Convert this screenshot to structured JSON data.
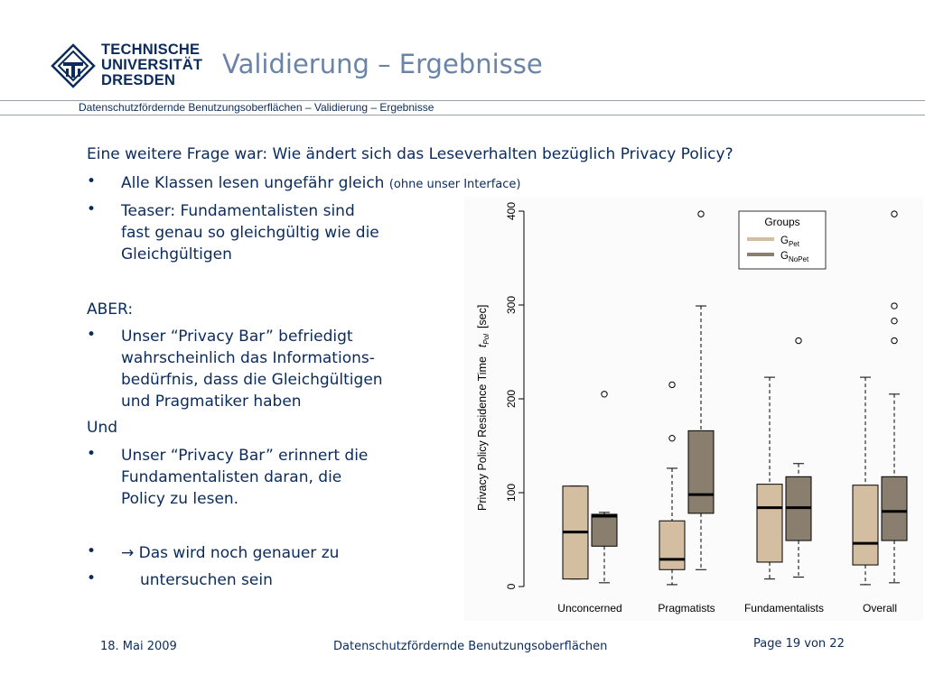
{
  "header": {
    "logo_lines": [
      "TECHNISCHE",
      "UNIVERSITÄT",
      "DRESDEN"
    ],
    "title": "Validierung – Ergebnisse",
    "breadcrumb": "Datenschutzfördernde Benutzungsoberflächen – Validierung – Ergebnisse"
  },
  "body": {
    "intro": "Eine weitere Frage war: Wie ändert sich das Leseverhalten bezüglich Privacy Policy?",
    "bullet1_main": "Alle Klassen lesen ungefähr gleich",
    "bullet1_small": "(ohne unser Interface)",
    "bullet2_lines": [
      "Teaser: Fundamentalisten sind",
      "fast genau so gleichgültig wie die",
      "Gleichgültigen"
    ],
    "aber": "ABER:",
    "bullet3_lines": [
      "Unser “Privacy Bar” befriedigt",
      "wahrscheinlich das Informations-",
      "bedürfnis, dass die Gleichgültigen",
      "und Pragmatiker haben"
    ],
    "und": "Und",
    "bullet4_lines": [
      "Unser “Privacy Bar” erinnert die",
      "Fundamentalisten daran, die",
      "Policy zu lesen."
    ],
    "bullet5": "→ Das wird noch genauer zu",
    "bullet6": "untersuchen sein",
    "bullet_symbol": "•"
  },
  "footer": {
    "date": "18. Mai 2009",
    "center": "Datenschutzfördernde Benutzungsoberflächen",
    "page": "Page 19 von 22"
  },
  "colors": {
    "brand": "#0b2b5c",
    "title": "#6a83a8",
    "pet": "#d4bea2",
    "nopet": "#8a7e6e"
  },
  "chart_data": {
    "type": "boxplot",
    "ylabel": "Privacy Policy Residence Time",
    "ylabel_symbol": "t",
    "ylabel_sub": "Pol",
    "ylabel_unit": "[sec]",
    "yticks": [
      0,
      100,
      200,
      300,
      400
    ],
    "ylim": [
      0,
      400
    ],
    "categories": [
      "Unconcerned",
      "Pragmatists",
      "Fundamentalists",
      "Overall"
    ],
    "legend": {
      "title": "Groups",
      "position": "top-right",
      "entries": [
        {
          "base": "G",
          "sub": "Pet"
        },
        {
          "base": "G",
          "sub": "NoPet"
        }
      ]
    },
    "series": [
      {
        "key": "pet",
        "boxes": [
          {
            "whisker_low": 8,
            "q1": 8,
            "median": 58,
            "q3": 107,
            "whisker_high": 107,
            "outliers": []
          },
          {
            "whisker_low": 2,
            "q1": 18,
            "median": 29,
            "q3": 70,
            "whisker_high": 126,
            "outliers": [
              158,
              215
            ]
          },
          {
            "whisker_low": 8,
            "q1": 26,
            "median": 84,
            "q3": 109,
            "whisker_high": 223,
            "outliers": []
          },
          {
            "whisker_low": 2,
            "q1": 23,
            "median": 46,
            "q3": 108,
            "whisker_high": 223,
            "outliers": []
          }
        ]
      },
      {
        "key": "nopet",
        "boxes": [
          {
            "whisker_low": 4,
            "q1": 43,
            "median": 75,
            "q3": 77,
            "whisker_high": 79,
            "outliers": [
              205
            ]
          },
          {
            "whisker_low": 18,
            "q1": 78,
            "median": 98,
            "q3": 166,
            "whisker_high": 299,
            "outliers": [
              397
            ]
          },
          {
            "whisker_low": 10,
            "q1": 49,
            "median": 84,
            "q3": 117,
            "whisker_high": 131,
            "outliers": [
              262
            ]
          },
          {
            "whisker_low": 4,
            "q1": 49,
            "median": 80,
            "q3": 117,
            "whisker_high": 205,
            "outliers": [
              262,
              283,
              299,
              397
            ]
          }
        ]
      }
    ]
  }
}
